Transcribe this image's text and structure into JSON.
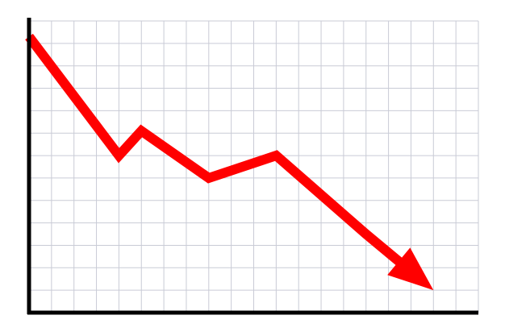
{
  "chart_data": {
    "type": "line",
    "title": "",
    "xlabel": "",
    "ylabel": "",
    "grid": true,
    "legend": "none",
    "xlim": [
      0,
      20
    ],
    "ylim": [
      0,
      13
    ],
    "series": [
      {
        "x": [
          0,
          4,
          5,
          8,
          11,
          15,
          18
        ],
        "y": [
          12.3,
          7,
          8.1,
          6,
          7,
          3.5,
          1
        ],
        "arrowhead": true,
        "color": "#ff0000"
      }
    ],
    "colors": {
      "line": "#ff0000",
      "grid": "#c9cbd6",
      "axis": "#000000",
      "background": "#ffffff"
    }
  }
}
